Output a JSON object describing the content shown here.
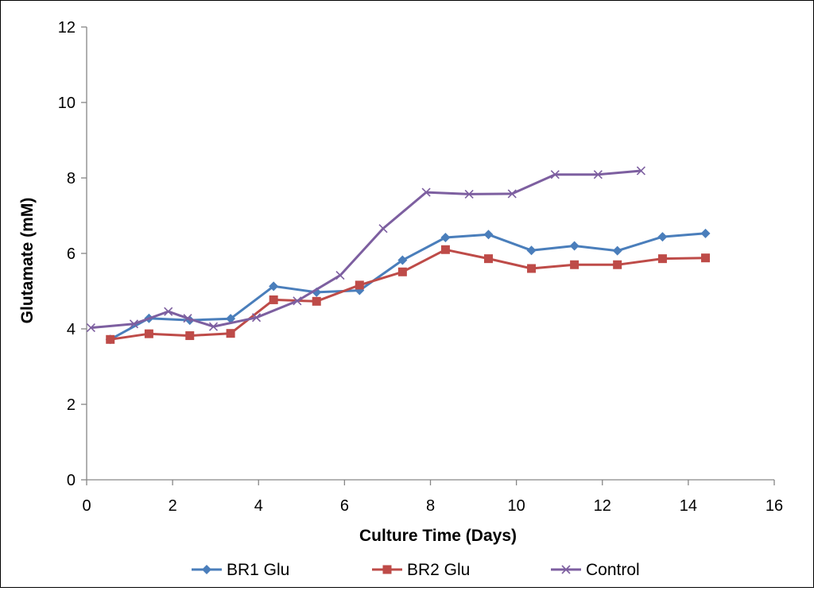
{
  "chart_data": {
    "type": "line",
    "title": "",
    "xlabel": "Culture Time (Days)",
    "ylabel": "Glutamate (mM)",
    "xlim": [
      0,
      16
    ],
    "ylim": [
      0,
      12
    ],
    "x_ticks": [
      0,
      2,
      4,
      6,
      8,
      10,
      12,
      14,
      16
    ],
    "y_ticks": [
      0,
      2,
      4,
      6,
      8,
      10,
      12
    ],
    "grid": false,
    "legend": "bottom",
    "series": [
      {
        "name": "BR1 Glu",
        "color": "#4A7EBB",
        "marker": "diamond",
        "x": [
          0.55,
          1.45,
          2.4,
          3.35,
          4.35,
          5.35,
          6.35,
          7.35,
          8.35,
          9.35,
          10.35,
          11.35,
          12.35,
          13.4,
          14.4
        ],
        "y": [
          3.72,
          4.28,
          4.23,
          4.27,
          5.13,
          4.97,
          5.02,
          5.82,
          6.42,
          6.5,
          6.08,
          6.2,
          6.07,
          6.44,
          6.53
        ]
      },
      {
        "name": "BR2 Glu",
        "color": "#BE4B48",
        "marker": "square",
        "x": [
          0.55,
          1.45,
          2.4,
          3.35,
          4.35,
          5.35,
          6.35,
          7.35,
          8.35,
          9.35,
          10.35,
          11.35,
          12.35,
          13.4,
          14.4
        ],
        "y": [
          3.72,
          3.87,
          3.82,
          3.88,
          4.77,
          4.73,
          5.16,
          5.51,
          6.1,
          5.86,
          5.6,
          5.7,
          5.7,
          5.86,
          5.88
        ]
      },
      {
        "name": "Control",
        "color": "#7D5FA0",
        "marker": "x",
        "x": [
          0.1,
          1.1,
          1.9,
          2.35,
          2.95,
          3.95,
          4.9,
          5.9,
          6.9,
          7.9,
          8.9,
          9.9,
          10.9,
          11.9,
          12.9
        ],
        "y": [
          4.03,
          4.13,
          4.46,
          4.28,
          4.06,
          4.3,
          4.74,
          5.42,
          6.66,
          7.62,
          7.57,
          7.58,
          8.09,
          8.09,
          8.19
        ]
      }
    ]
  }
}
